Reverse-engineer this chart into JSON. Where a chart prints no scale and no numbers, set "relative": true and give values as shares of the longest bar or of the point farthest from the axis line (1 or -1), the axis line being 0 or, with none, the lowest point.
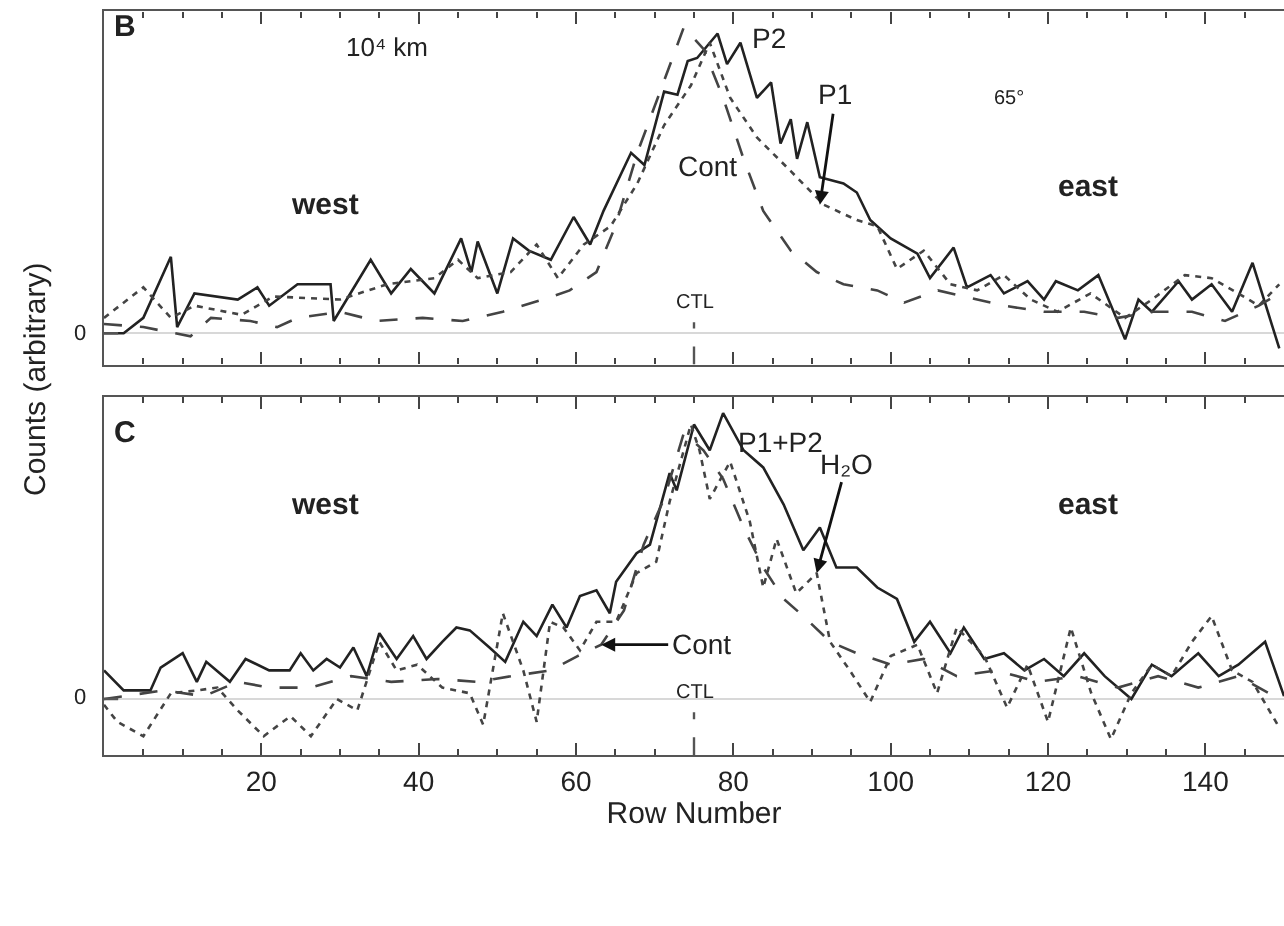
{
  "chart_data": [
    {
      "type": "line",
      "xlim": [
        0,
        150
      ],
      "xticks": [
        20,
        40,
        60,
        80,
        100,
        120,
        140
      ],
      "relative": true,
      "tick_labels": false,
      "marker": "none",
      "series": [
        {
          "color": "#222222",
          "line_style": "solid",
          "x": [
            0,
            2.5,
            5,
            8.5,
            9.3,
            11.5,
            17,
            19.5,
            21,
            24.6,
            28.8,
            29.2,
            33.9,
            36.5,
            39,
            42,
            45.4,
            46.7,
            47.5,
            50,
            52,
            54,
            56.8,
            59.7,
            61.8,
            63.5,
            67,
            68.7,
            71.2,
            72.9,
            74.2,
            75.4,
            78,
            79.2,
            80.9,
            83,
            84.8,
            86,
            87.3,
            88.1,
            89.4,
            91,
            94,
            95.7,
            97.4,
            100,
            103.4,
            105,
            108,
            109.7,
            112.7,
            114.4,
            117.4,
            119.5,
            121,
            123.8,
            126.4,
            129.8,
            131.5,
            133.2,
            136.6,
            138.3,
            140.8,
            143.4,
            146,
            149.4
          ],
          "values": [
            0,
            0,
            0.05,
            0.25,
            0.02,
            0.13,
            0.11,
            0.15,
            0.09,
            0.16,
            0.16,
            0.04,
            0.24,
            0.13,
            0.21,
            0.13,
            0.31,
            0.2,
            0.3,
            0.13,
            0.31,
            0.27,
            0.24,
            0.38,
            0.29,
            0.4,
            0.59,
            0.55,
            0.79,
            0.78,
            0.89,
            0.9,
            0.98,
            0.88,
            0.95,
            0.77,
            0.82,
            0.62,
            0.7,
            0.57,
            0.69,
            0.51,
            0.49,
            0.46,
            0.37,
            0.31,
            0.26,
            0.18,
            0.28,
            0.15,
            0.19,
            0.13,
            0.17,
            0.11,
            0.17,
            0.14,
            0.19,
            -0.02,
            0.11,
            0.07,
            0.17,
            0.11,
            0.16,
            0.07,
            0.23,
            -0.05
          ]
        },
        {
          "color": "#444444",
          "line_style": "dotted",
          "x": [
            0,
            5,
            8.5,
            11.5,
            17.5,
            21.5,
            30,
            36,
            42,
            45,
            47.5,
            51.7,
            55,
            57.7,
            61,
            64.4,
            67.8,
            71.2,
            74.6,
            77,
            79.6,
            83,
            87.3,
            91.5,
            95.7,
            98.3,
            100.8,
            104.2,
            107.6,
            111,
            114.4,
            117.8,
            121.2,
            125.4,
            129.8,
            133.2,
            137.4,
            140.8,
            144.2,
            146.8,
            149.4
          ],
          "values": [
            0.05,
            0.15,
            0.05,
            0.09,
            0.06,
            0.12,
            0.11,
            0.16,
            0.18,
            0.24,
            0.18,
            0.2,
            0.29,
            0.18,
            0.29,
            0.35,
            0.49,
            0.68,
            0.81,
            0.95,
            0.77,
            0.64,
            0.53,
            0.42,
            0.37,
            0.35,
            0.21,
            0.27,
            0.16,
            0.14,
            0.19,
            0.11,
            0.07,
            0.13,
            0.05,
            0.11,
            0.19,
            0.18,
            0.13,
            0.09,
            0.16
          ]
        },
        {
          "color": "#444444",
          "line_style": "dashed",
          "x": [
            0,
            5,
            11,
            13.6,
            18.6,
            22,
            24.6,
            30,
            34.6,
            40.5,
            45.6,
            50.7,
            55.8,
            59.2,
            62.6,
            65,
            67.8,
            70.4,
            73.7,
            76.2,
            78.7,
            81.3,
            83.8,
            87.3,
            90.6,
            94,
            98.3,
            101.7,
            106,
            111,
            114.4,
            119.5,
            124.6,
            128.9,
            133.2,
            138.3,
            142.5,
            146.8,
            149.4
          ],
          "values": [
            0.03,
            0.02,
            -0.01,
            0.05,
            0.04,
            0.02,
            0.05,
            0.07,
            0.04,
            0.05,
            0.04,
            0.07,
            0.11,
            0.14,
            0.2,
            0.35,
            0.59,
            0.77,
            1.0,
            0.93,
            0.77,
            0.57,
            0.4,
            0.27,
            0.2,
            0.16,
            0.14,
            0.1,
            0.14,
            0.11,
            0.09,
            0.07,
            0.07,
            0.05,
            0.07,
            0.07,
            0.04,
            0.09,
            0.13
          ]
        }
      ],
      "ref_lines": [
        {
          "axis": "x",
          "value": 75,
          "label": "CTL",
          "line_style": "dashed"
        }
      ],
      "annotations": [
        "B",
        "10⁴ km",
        "west",
        "east",
        "65°",
        {
          "text": "P2",
          "x": 80,
          "y": 0.95
        },
        {
          "text": "P1",
          "x": 91,
          "y": 0.42
        },
        {
          "text": "Cont",
          "x": 83.8,
          "y": 0.4
        },
        "0"
      ]
    },
    {
      "type": "line",
      "xlim": [
        0,
        150
      ],
      "xticks": [
        20,
        40,
        60,
        80,
        100,
        120,
        140
      ],
      "relative": true,
      "tick_labels": "x",
      "marker": "none",
      "xlabel": "Row Number",
      "ylabel": "Counts (arbitrary)",
      "series": [
        {
          "color": "#222222",
          "line_style": "solid",
          "x": [
            0,
            2.5,
            5.9,
            7.2,
            10,
            11.8,
            13,
            16,
            18,
            21,
            23.6,
            25,
            26.6,
            28.3,
            30,
            31.7,
            33.4,
            35,
            37.2,
            39.3,
            41,
            43,
            44.8,
            46.5,
            49,
            51,
            53.3,
            55,
            57,
            58.8,
            60.5,
            62.6,
            64.3,
            65.1,
            67.7,
            69.4,
            71.9,
            72.8,
            75,
            77,
            78.7,
            81.3,
            83.8,
            86.4,
            88.9,
            91,
            93.1,
            95.7,
            98.3,
            100.8,
            103,
            105,
            107.6,
            109.3,
            111.9,
            114.4,
            117,
            119.5,
            122,
            124.6,
            127.2,
            130.6,
            133.2,
            135.7,
            139.1,
            141.7,
            144.2,
            147.6,
            150
          ],
          "values": [
            0.1,
            0.03,
            0.03,
            0.11,
            0.16,
            0.06,
            0.13,
            0.06,
            0.14,
            0.1,
            0.1,
            0.16,
            0.1,
            0.14,
            0.11,
            0.18,
            0.08,
            0.23,
            0.14,
            0.22,
            0.14,
            0.2,
            0.25,
            0.24,
            0.18,
            0.13,
            0.27,
            0.22,
            0.33,
            0.25,
            0.36,
            0.38,
            0.3,
            0.41,
            0.51,
            0.54,
            0.79,
            0.73,
            0.96,
            0.87,
            1.0,
            0.87,
            0.81,
            0.68,
            0.52,
            0.6,
            0.46,
            0.46,
            0.39,
            0.35,
            0.2,
            0.27,
            0.16,
            0.25,
            0.14,
            0.16,
            0.1,
            0.14,
            0.08,
            0.16,
            0.08,
            0.0,
            0.12,
            0.08,
            0.16,
            0.08,
            0.12,
            0.2,
            0.01
          ]
        },
        {
          "color": "#444444",
          "line_style": "dotted",
          "x": [
            0,
            1.7,
            5,
            8.5,
            11.8,
            14.4,
            17,
            20.3,
            23.7,
            26.3,
            29.6,
            32.2,
            35,
            37.2,
            39.8,
            43,
            46.5,
            48.2,
            50.7,
            53.3,
            55,
            56.7,
            58.4,
            60.5,
            62.6,
            65.1,
            67.7,
            70.2,
            71.9,
            74.6,
            75.7,
            77,
            79.6,
            82.1,
            83.8,
            85.5,
            88,
            90.6,
            92.3,
            94.8,
            97.4,
            100,
            103.4,
            105.9,
            108.4,
            111.9,
            114.8,
            117.4,
            120,
            122.9,
            125.5,
            128,
            130.6,
            133.2,
            135.7,
            138.3,
            140.8,
            143.4,
            146,
            149.4
          ],
          "values": [
            -0.02,
            -0.08,
            -0.13,
            0.02,
            0.03,
            0.04,
            -0.04,
            -0.13,
            -0.06,
            -0.13,
            0,
            -0.04,
            0.2,
            0.1,
            0.12,
            0.04,
            0.02,
            -0.09,
            0.3,
            0.1,
            -0.08,
            0.27,
            0.25,
            0.17,
            0.27,
            0.27,
            0.44,
            0.48,
            0.69,
            0.96,
            0.87,
            0.7,
            0.83,
            0.62,
            0.39,
            0.56,
            0.37,
            0.44,
            0.2,
            0.1,
            -0.01,
            0.15,
            0.19,
            0.02,
            0.25,
            0.15,
            -0.03,
            0.12,
            -0.08,
            0.25,
            0.02,
            -0.14,
            0.02,
            0.12,
            0.08,
            0.2,
            0.29,
            0.1,
            0.06,
            -0.1
          ]
        },
        {
          "color": "#444444",
          "line_style": "dashed",
          "x": [
            0,
            7.6,
            12.7,
            17,
            21,
            26.3,
            31.4,
            36.5,
            42.4,
            47.5,
            51.8,
            56.8,
            60.2,
            63.2,
            66.1,
            68.6,
            71.2,
            73.7,
            76.2,
            78.7,
            81.3,
            83.8,
            86.4,
            88.9,
            92.3,
            95.7,
            100,
            104.2,
            108.4,
            113.5,
            118.6,
            123.7,
            128.9,
            134,
            139.1,
            144.2,
            149.4
          ],
          "values": [
            0,
            0.03,
            0.01,
            0.06,
            0.04,
            0.04,
            0.08,
            0.06,
            0.07,
            0.06,
            0.08,
            0.1,
            0.15,
            0.19,
            0.31,
            0.54,
            0.7,
            0.93,
            0.87,
            0.77,
            0.6,
            0.46,
            0.35,
            0.29,
            0.2,
            0.16,
            0.12,
            0.14,
            0.08,
            0.1,
            0.06,
            0.08,
            0.04,
            0.08,
            0.04,
            0.08,
            0
          ]
        }
      ],
      "ref_lines": [
        {
          "axis": "x",
          "value": 75,
          "label": "CTL",
          "line_style": "dashed"
        }
      ],
      "annotations": [
        "C",
        "west",
        "east",
        {
          "text": "P1+P2",
          "x": 79,
          "y": 0.98
        },
        {
          "text": "H₂O",
          "x": 90.6,
          "y": 0.44
        },
        {
          "text": "Cont",
          "x": 63.2,
          "y": 0.19
        },
        "0"
      ]
    }
  ]
}
